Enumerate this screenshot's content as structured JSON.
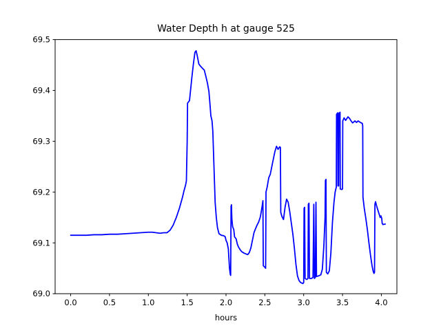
{
  "chart_data": {
    "type": "line",
    "title": "Water Depth h at gauge 525",
    "xlabel": "hours",
    "ylabel": "",
    "xlim": [
      -0.2,
      4.2
    ],
    "ylim": [
      69.0,
      69.5
    ],
    "grid": false,
    "legend": null,
    "xticks": [
      0.0,
      0.5,
      1.0,
      1.5,
      2.0,
      2.5,
      3.0,
      3.5,
      4.0
    ],
    "xticklabels": [
      "0.0",
      "0.5",
      "1.0",
      "1.5",
      "2.0",
      "2.5",
      "3.0",
      "3.5",
      "4.0"
    ],
    "yticks": [
      69.0,
      69.1,
      69.2,
      69.3,
      69.4,
      69.5
    ],
    "yticklabels": [
      "69.0",
      "69.1",
      "69.2",
      "69.3",
      "69.4",
      "69.5"
    ],
    "series": [
      {
        "name": "water-depth-gauge-525",
        "color": "#0000ff",
        "points": [
          [
            0.0,
            69.115
          ],
          [
            0.1,
            69.115
          ],
          [
            0.2,
            69.115
          ],
          [
            0.3,
            69.116
          ],
          [
            0.4,
            69.116
          ],
          [
            0.5,
            69.117
          ],
          [
            0.6,
            69.117
          ],
          [
            0.7,
            69.118
          ],
          [
            0.8,
            69.119
          ],
          [
            0.9,
            69.12
          ],
          [
            1.0,
            69.121
          ],
          [
            1.05,
            69.121
          ],
          [
            1.1,
            69.12
          ],
          [
            1.15,
            69.119
          ],
          [
            1.2,
            69.12
          ],
          [
            1.24,
            69.12
          ],
          [
            1.28,
            69.125
          ],
          [
            1.32,
            69.135
          ],
          [
            1.36,
            69.15
          ],
          [
            1.4,
            69.168
          ],
          [
            1.44,
            69.19
          ],
          [
            1.46,
            69.203
          ],
          [
            1.48,
            69.214
          ],
          [
            1.49,
            69.222
          ],
          [
            1.5,
            69.3
          ],
          [
            1.505,
            69.375
          ],
          [
            1.53,
            69.38
          ],
          [
            1.56,
            69.425
          ],
          [
            1.58,
            69.452
          ],
          [
            1.6,
            69.475
          ],
          [
            1.615,
            69.478
          ],
          [
            1.63,
            69.468
          ],
          [
            1.65,
            69.452
          ],
          [
            1.67,
            69.448
          ],
          [
            1.7,
            69.443
          ],
          [
            1.72,
            69.44
          ],
          [
            1.74,
            69.428
          ],
          [
            1.76,
            69.415
          ],
          [
            1.78,
            69.398
          ],
          [
            1.795,
            69.37
          ],
          [
            1.805,
            69.35
          ],
          [
            1.82,
            69.34
          ],
          [
            1.83,
            69.32
          ],
          [
            1.845,
            69.25
          ],
          [
            1.86,
            69.18
          ],
          [
            1.875,
            69.15
          ],
          [
            1.89,
            69.13
          ],
          [
            1.91,
            69.118
          ],
          [
            1.94,
            69.115
          ],
          [
            1.97,
            69.114
          ],
          [
            1.99,
            69.112
          ],
          [
            2.0,
            69.105
          ],
          [
            2.015,
            69.1
          ],
          [
            2.03,
            69.088
          ],
          [
            2.045,
            69.05
          ],
          [
            2.055,
            69.038
          ],
          [
            2.06,
            69.036
          ],
          [
            2.065,
            69.172
          ],
          [
            2.07,
            69.175
          ],
          [
            2.075,
            69.148
          ],
          [
            2.085,
            69.132
          ],
          [
            2.1,
            69.126
          ],
          [
            2.11,
            69.112
          ],
          [
            2.13,
            69.108
          ],
          [
            2.145,
            69.098
          ],
          [
            2.16,
            69.092
          ],
          [
            2.18,
            69.087
          ],
          [
            2.2,
            69.083
          ],
          [
            2.23,
            69.08
          ],
          [
            2.26,
            69.078
          ],
          [
            2.28,
            69.077
          ],
          [
            2.3,
            69.081
          ],
          [
            2.32,
            69.09
          ],
          [
            2.34,
            69.105
          ],
          [
            2.36,
            69.12
          ],
          [
            2.38,
            69.128
          ],
          [
            2.4,
            69.135
          ],
          [
            2.42,
            69.141
          ],
          [
            2.44,
            69.15
          ],
          [
            2.45,
            69.158
          ],
          [
            2.465,
            69.172
          ],
          [
            2.475,
            69.183
          ],
          [
            2.48,
            69.055
          ],
          [
            2.5,
            69.052
          ],
          [
            2.51,
            69.05
          ],
          [
            2.515,
            69.2
          ],
          [
            2.53,
            69.21
          ],
          [
            2.55,
            69.228
          ],
          [
            2.57,
            69.235
          ],
          [
            2.6,
            69.258
          ],
          [
            2.63,
            69.28
          ],
          [
            2.65,
            69.29
          ],
          [
            2.67,
            69.284
          ],
          [
            2.69,
            69.289
          ],
          [
            2.7,
            69.288
          ],
          [
            2.705,
            69.16
          ],
          [
            2.72,
            69.152
          ],
          [
            2.74,
            69.146
          ],
          [
            2.76,
            69.17
          ],
          [
            2.78,
            69.186
          ],
          [
            2.8,
            69.18
          ],
          [
            2.82,
            69.162
          ],
          [
            2.84,
            69.14
          ],
          [
            2.86,
            69.118
          ],
          [
            2.88,
            69.09
          ],
          [
            2.9,
            69.058
          ],
          [
            2.92,
            69.035
          ],
          [
            2.94,
            69.026
          ],
          [
            2.96,
            69.022
          ],
          [
            2.99,
            69.02
          ],
          [
            3.0,
            69.022
          ],
          [
            3.005,
            69.168
          ],
          [
            3.012,
            69.17
          ],
          [
            3.018,
            69.03
          ],
          [
            3.04,
            69.028
          ],
          [
            3.055,
            69.03
          ],
          [
            3.06,
            69.176
          ],
          [
            3.068,
            69.178
          ],
          [
            3.075,
            69.03
          ],
          [
            3.1,
            69.03
          ],
          [
            3.12,
            69.032
          ],
          [
            3.13,
            69.176
          ],
          [
            3.138,
            69.03
          ],
          [
            3.15,
            69.032
          ],
          [
            3.158,
            69.18
          ],
          [
            3.165,
            69.034
          ],
          [
            3.19,
            69.035
          ],
          [
            3.22,
            69.037
          ],
          [
            3.24,
            69.048
          ],
          [
            3.26,
            69.095
          ],
          [
            3.275,
            69.15
          ],
          [
            3.28,
            69.223
          ],
          [
            3.287,
            69.225
          ],
          [
            3.292,
            69.042
          ],
          [
            3.31,
            69.039
          ],
          [
            3.33,
            69.045
          ],
          [
            3.35,
            69.08
          ],
          [
            3.37,
            69.14
          ],
          [
            3.39,
            69.18
          ],
          [
            3.405,
            69.2
          ],
          [
            3.42,
            69.21
          ],
          [
            3.423,
            69.353
          ],
          [
            3.438,
            69.356
          ],
          [
            3.441,
            69.212
          ],
          [
            3.45,
            69.212
          ],
          [
            3.453,
            69.355
          ],
          [
            3.468,
            69.357
          ],
          [
            3.471,
            69.206
          ],
          [
            3.49,
            69.205
          ],
          [
            3.5,
            69.206
          ],
          [
            3.503,
            69.34
          ],
          [
            3.52,
            69.346
          ],
          [
            3.54,
            69.341
          ],
          [
            3.57,
            69.348
          ],
          [
            3.59,
            69.345
          ],
          [
            3.61,
            69.34
          ],
          [
            3.63,
            69.336
          ],
          [
            3.66,
            69.34
          ],
          [
            3.68,
            69.337
          ],
          [
            3.7,
            69.34
          ],
          [
            3.73,
            69.337
          ],
          [
            3.755,
            69.335
          ],
          [
            3.76,
            69.33
          ],
          [
            3.763,
            69.19
          ],
          [
            3.78,
            69.168
          ],
          [
            3.8,
            69.148
          ],
          [
            3.82,
            69.126
          ],
          [
            3.84,
            69.1
          ],
          [
            3.86,
            69.076
          ],
          [
            3.88,
            69.055
          ],
          [
            3.895,
            69.044
          ],
          [
            3.905,
            69.04
          ],
          [
            3.912,
            69.042
          ],
          [
            3.917,
            69.176
          ],
          [
            3.925,
            69.181
          ],
          [
            3.94,
            69.172
          ],
          [
            3.96,
            69.162
          ],
          [
            3.975,
            69.155
          ],
          [
            3.985,
            69.15
          ],
          [
            3.995,
            69.153
          ],
          [
            4.005,
            69.148
          ],
          [
            4.01,
            69.139
          ],
          [
            4.02,
            69.136
          ],
          [
            4.05,
            69.137
          ]
        ]
      }
    ],
    "colors": {
      "line": "#0000ff",
      "axes": "#000000",
      "background": "#ffffff"
    }
  }
}
